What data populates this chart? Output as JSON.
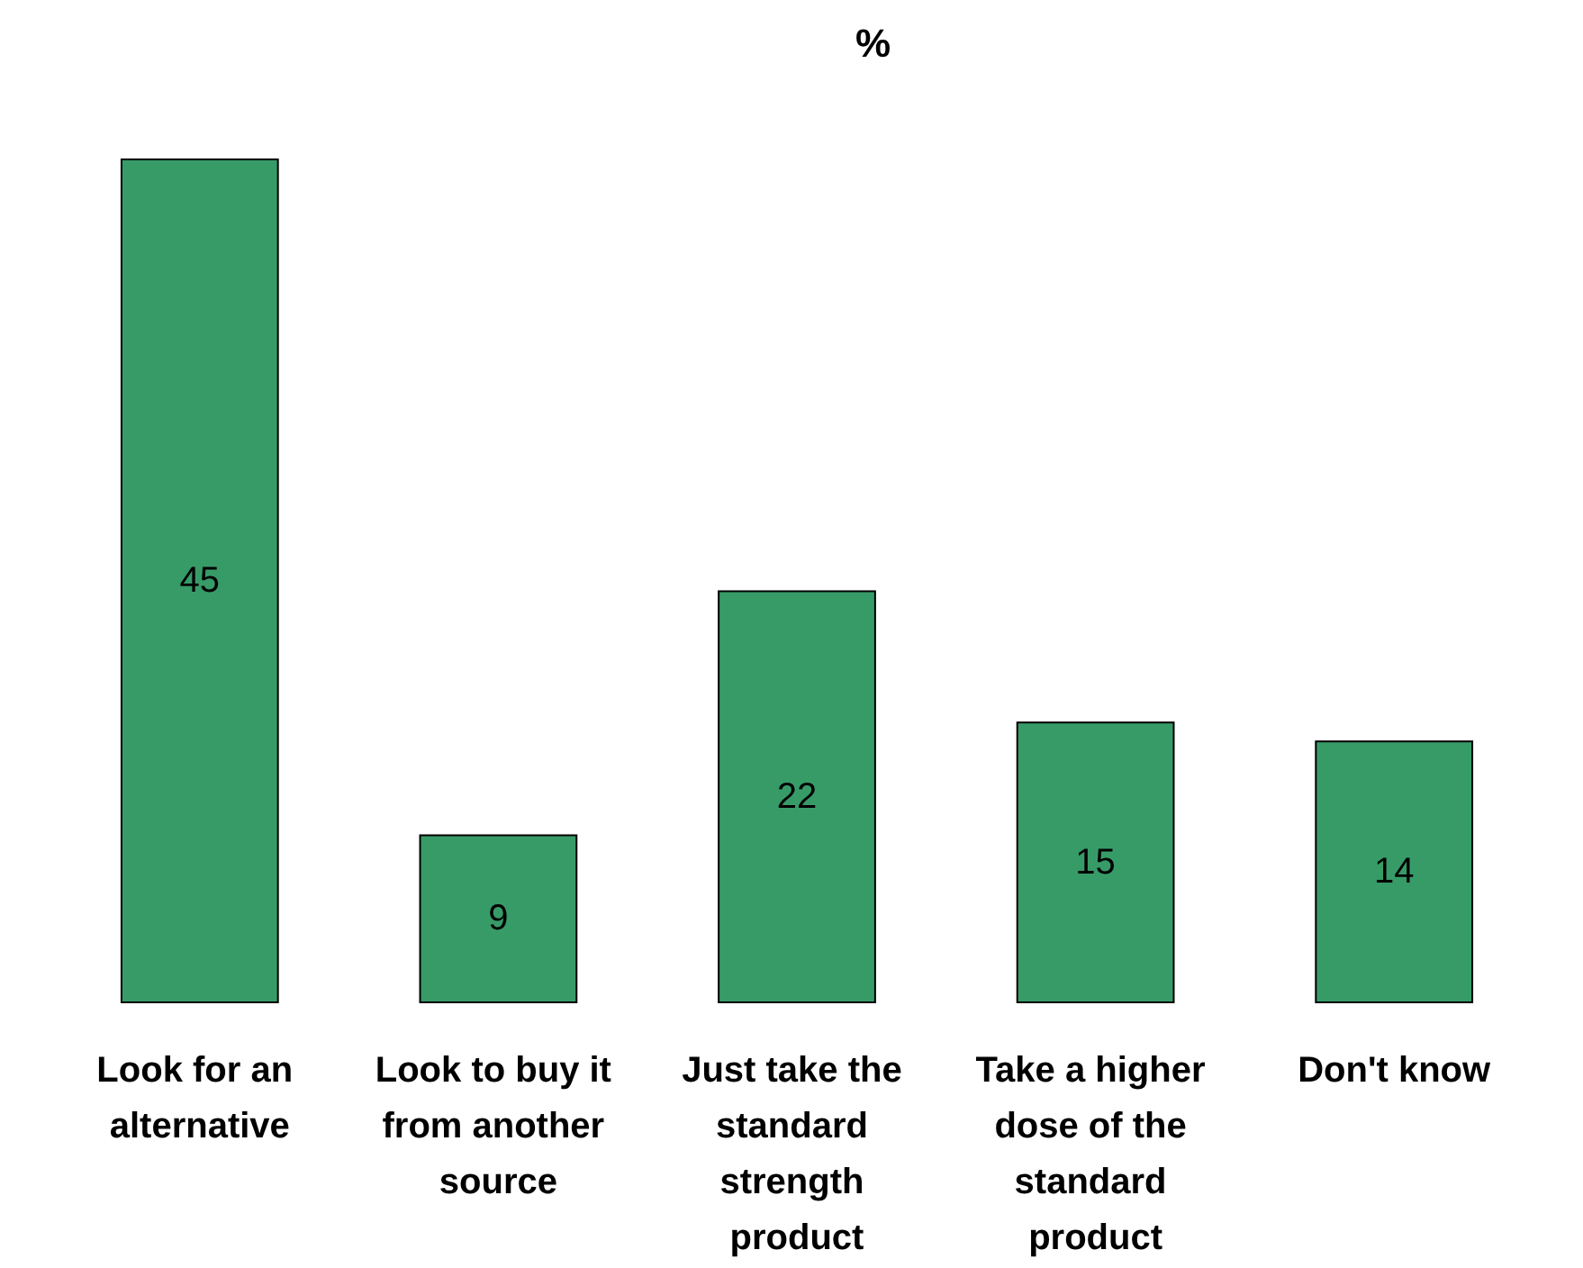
{
  "chart_data": {
    "type": "bar",
    "title": "%",
    "categories": [
      "Look for an alternative",
      "Look to buy it from another source",
      "Just take the standard strength product",
      "Take a higher dose of the standard product",
      "Don't know"
    ],
    "values": [
      45,
      9,
      22,
      15,
      14
    ],
    "color": "#379b68",
    "data_labels": true
  }
}
